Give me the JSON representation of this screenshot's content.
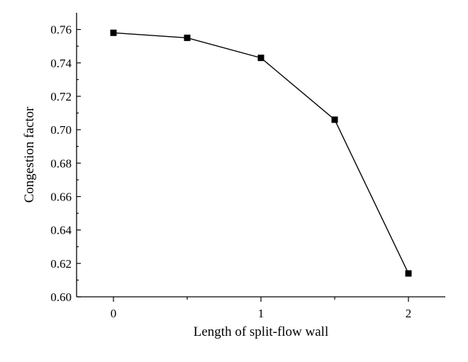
{
  "chart_data": {
    "type": "line",
    "xlabel": "Length of split-flow wall",
    "ylabel": "Congestion factor",
    "xlim": [
      -0.25,
      2.25
    ],
    "ylim": [
      0.6,
      0.77
    ],
    "x_ticks": [
      0,
      1,
      2
    ],
    "x_minor_ticks": [
      0.5,
      1.5
    ],
    "y_ticks": [
      0.6,
      0.62,
      0.64,
      0.66,
      0.68,
      0.7,
      0.72,
      0.74,
      0.76
    ],
    "y_tick_labels": [
      "0.60",
      "0.62",
      "0.64",
      "0.66",
      "0.68",
      "0.70",
      "0.72",
      "0.74",
      "0.76"
    ],
    "x_tick_labels": [
      "0",
      "1",
      "2"
    ],
    "grid": false,
    "marker": "square",
    "series": [
      {
        "x": [
          0,
          0.5,
          1,
          1.5,
          2
        ],
        "y": [
          0.758,
          0.755,
          0.743,
          0.706,
          0.614
        ]
      }
    ],
    "colors": {
      "line": "#000000",
      "marker": "#000000"
    }
  }
}
